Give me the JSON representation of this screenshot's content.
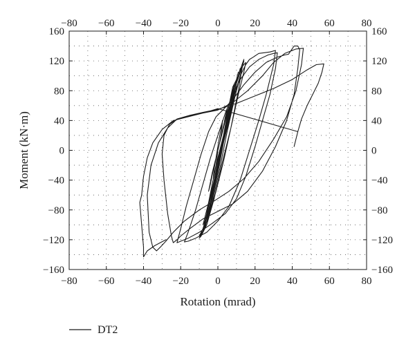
{
  "chart_data": {
    "type": "line",
    "xlabel": "Rotation (mrad)",
    "ylabel": "Moment (kN·m)",
    "xlim": [
      -80,
      80
    ],
    "ylim": [
      -160,
      160
    ],
    "x_ticks": [
      -80,
      -60,
      -40,
      -20,
      0,
      20,
      40,
      60,
      80
    ],
    "y_ticks": [
      -160,
      -120,
      -80,
      -40,
      0,
      40,
      80,
      120,
      160
    ],
    "x_tick_labels": [
      "−80",
      "−60",
      "−40",
      "−20",
      "0",
      "20",
      "40",
      "60",
      "80"
    ],
    "y_tick_labels": [
      "−160",
      "−120",
      "−80",
      "−40",
      "0",
      "40",
      "80",
      "120",
      "160"
    ],
    "x_minor_step": 10,
    "y_minor_step": 20,
    "grid": "dotted",
    "mirror_axes": true,
    "legend_position": "bottom-left",
    "line_color": "#1a1a1a",
    "series": [
      {
        "name": "DT2",
        "points": [
          [
            0,
            0
          ],
          [
            1,
            10
          ],
          [
            2,
            25
          ],
          [
            2.5,
            40
          ],
          [
            1,
            20
          ],
          [
            0,
            5
          ],
          [
            -1,
            -10
          ],
          [
            -2,
            -25
          ],
          [
            -2.5,
            -38
          ],
          [
            -1,
            -20
          ],
          [
            0,
            0
          ],
          [
            2,
            20
          ],
          [
            4,
            40
          ],
          [
            5,
            55
          ],
          [
            4,
            45
          ],
          [
            2,
            20
          ],
          [
            0,
            0
          ],
          [
            -3,
            -30
          ],
          [
            -5,
            -55
          ],
          [
            -4,
            -45
          ],
          [
            -2,
            -20
          ],
          [
            0,
            0
          ],
          [
            3,
            30
          ],
          [
            6,
            60
          ],
          [
            8,
            80
          ],
          [
            9,
            90
          ],
          [
            7,
            65
          ],
          [
            4,
            30
          ],
          [
            0,
            -10
          ],
          [
            -3,
            -45
          ],
          [
            -5,
            -70
          ],
          [
            -6,
            -85
          ],
          [
            -5,
            -75
          ],
          [
            -2,
            -45
          ],
          [
            1,
            -10
          ],
          [
            3,
            20
          ],
          [
            6,
            60
          ],
          [
            8,
            85
          ],
          [
            10,
            95
          ],
          [
            11,
            105
          ],
          [
            9,
            85
          ],
          [
            6,
            50
          ],
          [
            2,
            10
          ],
          [
            -2,
            -40
          ],
          [
            -5,
            -75
          ],
          [
            -7,
            -95
          ],
          [
            -8,
            -100
          ],
          [
            -7,
            -90
          ],
          [
            -4,
            -60
          ],
          [
            0,
            -20
          ],
          [
            3,
            20
          ],
          [
            6,
            55
          ],
          [
            9,
            85
          ],
          [
            11,
            100
          ],
          [
            12,
            110
          ],
          [
            10,
            90
          ],
          [
            7,
            55
          ],
          [
            3,
            10
          ],
          [
            -1,
            -40
          ],
          [
            -4,
            -75
          ],
          [
            -6,
            -95
          ],
          [
            -7,
            -105
          ],
          [
            -6,
            -95
          ],
          [
            -3,
            -65
          ],
          [
            0,
            -30
          ],
          [
            3,
            10
          ],
          [
            6,
            45
          ],
          [
            9,
            80
          ],
          [
            11,
            100
          ],
          [
            13,
            115
          ],
          [
            14,
            120
          ],
          [
            12,
            100
          ],
          [
            9,
            70
          ],
          [
            5,
            25
          ],
          [
            1,
            -25
          ],
          [
            -3,
            -70
          ],
          [
            -6,
            -95
          ],
          [
            -8,
            -108
          ],
          [
            -7,
            -98
          ],
          [
            -4,
            -70
          ],
          [
            -1,
            -35
          ],
          [
            2,
            0
          ],
          [
            5,
            35
          ],
          [
            8,
            70
          ],
          [
            11,
            100
          ],
          [
            13,
            115
          ],
          [
            14,
            122
          ],
          [
            13,
            110
          ],
          [
            11,
            80
          ],
          [
            7,
            30
          ],
          [
            2,
            -20
          ],
          [
            -2,
            -65
          ],
          [
            -6,
            -100
          ],
          [
            -9,
            -115
          ],
          [
            -10,
            -118
          ],
          [
            -8,
            -108
          ],
          [
            -5,
            -82
          ],
          [
            -2,
            -48
          ],
          [
            1,
            -10
          ],
          [
            4,
            28
          ],
          [
            7,
            60
          ],
          [
            10,
            90
          ],
          [
            13,
            112
          ],
          [
            15,
            118
          ],
          [
            14,
            105
          ],
          [
            11,
            75
          ],
          [
            7,
            30
          ],
          [
            3,
            -15
          ],
          [
            -1,
            -55
          ],
          [
            -5,
            -90
          ],
          [
            -8,
            -108
          ],
          [
            -10,
            -115
          ],
          [
            -8,
            -105
          ],
          [
            -5,
            -80
          ],
          [
            -1,
            -40
          ],
          [
            2,
            0
          ],
          [
            6,
            40
          ],
          [
            9,
            75
          ],
          [
            12,
            100
          ],
          [
            15,
            115
          ],
          [
            17,
            122
          ],
          [
            19,
            125
          ],
          [
            22,
            130
          ],
          [
            28,
            132
          ],
          [
            31,
            134
          ],
          [
            30,
            115
          ],
          [
            26,
            75
          ],
          [
            22,
            40
          ],
          [
            17,
            0
          ],
          [
            12,
            -40
          ],
          [
            6,
            -75
          ],
          [
            0,
            -95
          ],
          [
            -6,
            -110
          ],
          [
            -12,
            -118
          ],
          [
            -16,
            -122
          ],
          [
            -18,
            -123
          ],
          [
            -16,
            -110
          ],
          [
            -12,
            -80
          ],
          [
            -8,
            -45
          ],
          [
            -4,
            -10
          ],
          [
            0,
            20
          ],
          [
            4,
            50
          ],
          [
            8,
            75
          ],
          [
            12,
            95
          ],
          [
            17,
            112
          ],
          [
            22,
            122
          ],
          [
            27,
            128
          ],
          [
            30,
            130
          ],
          [
            32,
            131
          ],
          [
            31,
            110
          ],
          [
            28,
            75
          ],
          [
            24,
            40
          ],
          [
            20,
            5
          ],
          [
            15,
            -35
          ],
          [
            10,
            -65
          ],
          [
            4,
            -85
          ],
          [
            -3,
            -98
          ],
          [
            -10,
            -110
          ],
          [
            -16,
            -118
          ],
          [
            -20,
            -122
          ],
          [
            -22,
            -124
          ],
          [
            -20,
            -105
          ],
          [
            -17,
            -75
          ],
          [
            -13,
            -40
          ],
          [
            -9,
            -5
          ],
          [
            -5,
            25
          ],
          [
            -1,
            45
          ],
          [
            3,
            55
          ],
          [
            8,
            68
          ],
          [
            14,
            88
          ],
          [
            20,
            105
          ],
          [
            26,
            118
          ],
          [
            32,
            125
          ],
          [
            36,
            128
          ],
          [
            38,
            129
          ],
          [
            41,
            140
          ],
          [
            43,
            140
          ],
          [
            44,
            135
          ],
          [
            43,
            110
          ],
          [
            41,
            75
          ],
          [
            37,
            40
          ],
          [
            31,
            5
          ],
          [
            24,
            -28
          ],
          [
            16,
            -55
          ],
          [
            8,
            -72
          ],
          [
            0,
            -82
          ],
          [
            -8,
            -92
          ],
          [
            -15,
            -105
          ],
          [
            -20,
            -115
          ],
          [
            -22,
            -120
          ],
          [
            -24,
            -124
          ],
          [
            -25,
            -115
          ],
          [
            -27,
            -85
          ],
          [
            -29,
            -40
          ],
          [
            -30,
            -5
          ],
          [
            -29,
            20
          ],
          [
            -26,
            35
          ],
          [
            -22,
            42
          ],
          [
            -16,
            46
          ],
          [
            -8,
            50
          ],
          [
            0,
            54
          ],
          [
            8,
            64
          ],
          [
            16,
            80
          ],
          [
            24,
            100
          ],
          [
            30,
            118
          ],
          [
            36,
            130
          ],
          [
            42,
            136
          ],
          [
            46,
            137
          ],
          [
            45,
            115
          ],
          [
            42,
            80
          ],
          [
            37,
            45
          ],
          [
            30,
            15
          ],
          [
            22,
            -15
          ],
          [
            14,
            -38
          ],
          [
            6,
            -55
          ],
          [
            -2,
            -68
          ],
          [
            -10,
            -80
          ],
          [
            -18,
            -95
          ],
          [
            -24,
            -110
          ],
          [
            -28,
            -122
          ],
          [
            -31,
            -130
          ],
          [
            -33,
            -135
          ],
          [
            -35,
            -130
          ],
          [
            -37,
            -110
          ],
          [
            -38,
            -60
          ],
          [
            -36,
            -20
          ],
          [
            -32,
            10
          ],
          [
            -27,
            30
          ],
          [
            -22,
            42
          ],
          [
            -15,
            47
          ],
          [
            -8,
            51
          ],
          [
            0,
            55
          ],
          [
            10,
            63
          ],
          [
            20,
            73
          ],
          [
            30,
            83
          ],
          [
            40,
            95
          ],
          [
            48,
            108
          ],
          [
            53,
            115
          ],
          [
            57,
            116
          ],
          [
            56,
            105
          ],
          [
            54,
            90
          ],
          [
            51,
            75
          ],
          [
            48,
            60
          ],
          [
            45,
            42
          ],
          [
            43,
            25
          ],
          [
            41,
            5
          ],
          [
            41,
            5
          ],
          [
            43,
            25
          ],
          [
            0,
            56
          ],
          [
            -8,
            50
          ],
          [
            -16,
            45
          ],
          [
            -24,
            40
          ],
          [
            -30,
            28
          ],
          [
            -35,
            10
          ],
          [
            -38,
            -10
          ],
          [
            -40,
            -35
          ],
          [
            -41,
            -60
          ],
          [
            -42,
            -70
          ],
          [
            -41,
            -100
          ],
          [
            -40,
            -130
          ],
          [
            -40,
            -143
          ],
          [
            -38,
            -135
          ],
          [
            -34,
            -128
          ],
          [
            -28,
            -120
          ]
        ]
      }
    ]
  }
}
